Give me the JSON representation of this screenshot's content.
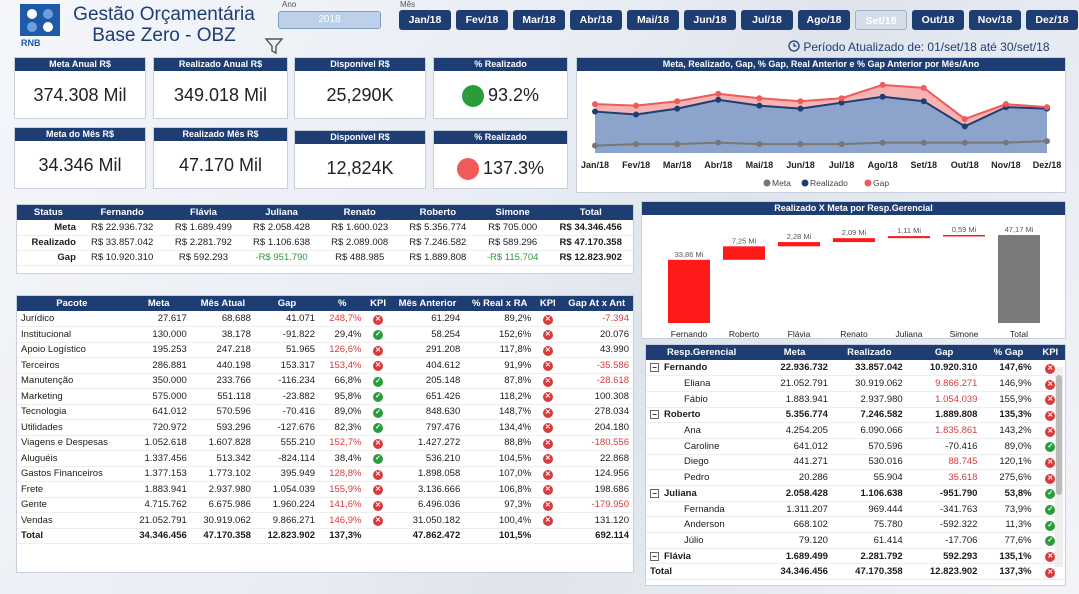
{
  "header": {
    "logo_text": "RNB",
    "title_line1": "Gestão Orçamentária",
    "title_line2": "Base Zero - OBZ",
    "ano_label": "Ano",
    "mes_label": "Mês",
    "year": "2018",
    "months": [
      "Jan/18",
      "Fev/18",
      "Mar/18",
      "Abr/18",
      "Mai/18",
      "Jun/18",
      "Jul/18",
      "Ago/18",
      "Set/18",
      "Out/18",
      "Nov/18",
      "Dez/18"
    ],
    "selected_month": "Set/18",
    "period": "Período Atualizado de: 01/set/18 até 30/set/18"
  },
  "cards": {
    "meta_anual": {
      "label": "Meta Anual R$",
      "value": "374.308 Mil"
    },
    "realizado_anual": {
      "label": "Realizado Anual R$",
      "value": "349.018 Mil"
    },
    "disponivel_anual": {
      "label": "Disponível R$",
      "value": "25,290K"
    },
    "pct_anual": {
      "label": "% Realizado",
      "value": "93.2%"
    },
    "meta_mes": {
      "label": "Meta do Mês R$",
      "value": "34.346 Mil"
    },
    "realizado_mes": {
      "label": "Realizado Mês R$",
      "value": "47.170 Mil"
    },
    "disponivel_mes": {
      "label": "Disponível R$",
      "value": "12,824K"
    },
    "pct_mes": {
      "label": "% Realizado",
      "value": "137.3%"
    }
  },
  "colors": {
    "navy": "#1e3d73",
    "red": "#d93b3b",
    "green": "#2a9d3a",
    "meta": "#777777",
    "realizado": "#1e3d73",
    "gap": "#f05a5a"
  },
  "chart_data": [
    {
      "type": "area",
      "title": "Meta, Realizado, Gap, % Gap, Real Anterior e % Gap Anterior por Mês/Ano",
      "categories": [
        "Jan/18",
        "Fev/18",
        "Mar/18",
        "Abr/18",
        "Mai/18",
        "Jun/18",
        "Jul/18",
        "Ago/18",
        "Set/18",
        "Out/18",
        "Nov/18",
        "Dez/18"
      ],
      "series": [
        {
          "name": "Meta",
          "values": [
            5,
            6,
            6,
            7,
            6,
            6,
            6,
            7,
            7,
            7,
            7,
            8
          ]
        },
        {
          "name": "Realizado",
          "values": [
            28,
            26,
            30,
            36,
            32,
            30,
            34,
            38,
            35,
            18,
            31,
            30
          ]
        },
        {
          "name": "Gap",
          "values": [
            33,
            32,
            35,
            40,
            37,
            35,
            37,
            46,
            44,
            23,
            33,
            31
          ]
        }
      ],
      "legend": [
        "Meta",
        "Realizado",
        "Gap"
      ],
      "ylim": [
        0,
        50
      ]
    },
    {
      "type": "bar",
      "title": "Realizado X Meta por Resp.Gerencial",
      "categories": [
        "Fernando",
        "Roberto",
        "Flávia",
        "Renato",
        "Juliana",
        "Simone",
        "Total"
      ],
      "values": [
        33.86,
        7.25,
        2.28,
        2.09,
        1.11,
        0.59,
        47.17
      ],
      "labels": [
        "33,86 Mi",
        "7,25 Mi",
        "2,28 Mi",
        "2,09 Mi",
        "1,11 Mi",
        "0,59 Mi",
        "47,17 Mi"
      ]
    }
  ],
  "status": {
    "headers": [
      "Status",
      "Fernando",
      "Flávia",
      "Juliana",
      "Renato",
      "Roberto",
      "Simone",
      "Total"
    ],
    "rows": [
      [
        "Meta",
        "R$ 22.936.732",
        "R$ 1.689.499",
        "R$ 2.058.428",
        "R$ 1.600.023",
        "R$ 5.356.774",
        "R$ 705.000",
        "R$ 34.346.456"
      ],
      [
        "Realizado",
        "R$ 33.857.042",
        "R$ 2.281.792",
        "R$ 1.106.638",
        "R$ 2.089.008",
        "R$ 7.246.582",
        "R$ 589.296",
        "R$ 47.170.358"
      ],
      [
        "Gap",
        "R$ 10.920.310",
        "R$ 592.293",
        "-R$ 951.790",
        "R$ 488.985",
        "R$ 1.889.808",
        "-R$ 115.704",
        "R$ 12.823.902"
      ]
    ]
  },
  "pacote": {
    "headers": [
      "Pacote",
      "Meta",
      "Mês Atual",
      "Gap",
      "%",
      "KPI",
      "Mês Anterior",
      "% Real x RA",
      "KPI",
      "Gap At x Ant"
    ],
    "rows": [
      [
        "Jurídico",
        "27.617",
        "68.688",
        "41.071",
        "248,7%",
        "x",
        "61.294",
        "89,2%",
        "x",
        "-7.394"
      ],
      [
        "Institucional",
        "130.000",
        "38.178",
        "-91.822",
        "29,4%",
        "ok",
        "58.254",
        "152,6%",
        "x",
        "20.076"
      ],
      [
        "Apoio Logístico",
        "195.253",
        "247.218",
        "51.965",
        "126,6%",
        "x",
        "291.208",
        "117,8%",
        "x",
        "43.990"
      ],
      [
        "Terceiros",
        "286.881",
        "440.198",
        "153.317",
        "153,4%",
        "x",
        "404.612",
        "91,9%",
        "x",
        "-35.586"
      ],
      [
        "Manutenção",
        "350.000",
        "233.766",
        "-116.234",
        "66,8%",
        "ok",
        "205.148",
        "87,8%",
        "x",
        "-28.618"
      ],
      [
        "Marketing",
        "575.000",
        "551.118",
        "-23.882",
        "95,8%",
        "ok",
        "651.426",
        "118,2%",
        "x",
        "100.308"
      ],
      [
        "Tecnologia",
        "641.012",
        "570.596",
        "-70.416",
        "89,0%",
        "ok",
        "848.630",
        "148,7%",
        "x",
        "278.034"
      ],
      [
        "Utilidades",
        "720.972",
        "593.296",
        "-127.676",
        "82,3%",
        "ok",
        "797.476",
        "134,4%",
        "x",
        "204.180"
      ],
      [
        "Viagens e Despesas",
        "1.052.618",
        "1.607.828",
        "555.210",
        "152,7%",
        "x",
        "1.427.272",
        "88,8%",
        "x",
        "-180.556"
      ],
      [
        "Aluguéis",
        "1.337.456",
        "513.342",
        "-824.114",
        "38,4%",
        "ok",
        "536.210",
        "104,5%",
        "x",
        "22.868"
      ],
      [
        "Gastos Financeiros",
        "1.377.153",
        "1.773.102",
        "395.949",
        "128,8%",
        "x",
        "1.898.058",
        "107,0%",
        "x",
        "124.956"
      ],
      [
        "Frete",
        "1.883.941",
        "2.937.980",
        "1.054.039",
        "155,9%",
        "x",
        "3.136.666",
        "106,8%",
        "x",
        "198.686"
      ],
      [
        "Gente",
        "4.715.762",
        "6.675.986",
        "1.960.224",
        "141,6%",
        "x",
        "6.496.036",
        "97,3%",
        "x",
        "-179.950"
      ],
      [
        "Vendas",
        "21.052.791",
        "30.919.062",
        "9.866.271",
        "146,9%",
        "x",
        "31.050.182",
        "100,4%",
        "x",
        "131.120"
      ]
    ],
    "total": [
      "Total",
      "34.346.456",
      "47.170.358",
      "12.823.902",
      "137,3%",
      "",
      "47.862.472",
      "101,5%",
      "",
      "692.114"
    ]
  },
  "resp": {
    "headers": [
      "Resp.Gerencial",
      "Meta",
      "Realizado",
      "Gap",
      "% Gap",
      "KPI"
    ],
    "rows": [
      {
        "g": true,
        "c": [
          "Fernando",
          "22.936.732",
          "33.857.042",
          "10.920.310",
          "147,6%",
          "x"
        ]
      },
      {
        "g": false,
        "c": [
          "Eliana",
          "21.052.791",
          "30.919.062",
          "9.866.271",
          "146,9%",
          "x"
        ]
      },
      {
        "g": false,
        "c": [
          "Fábio",
          "1.883.941",
          "2.937.980",
          "1.054.039",
          "155,9%",
          "x"
        ]
      },
      {
        "g": true,
        "c": [
          "Roberto",
          "5.356.774",
          "7.246.582",
          "1.889.808",
          "135,3%",
          "x"
        ]
      },
      {
        "g": false,
        "c": [
          "Ana",
          "4.254.205",
          "6.090.066",
          "1.835.861",
          "143,2%",
          "x"
        ]
      },
      {
        "g": false,
        "c": [
          "Caroline",
          "641.012",
          "570.596",
          "-70.416",
          "89,0%",
          "ok"
        ]
      },
      {
        "g": false,
        "c": [
          "Diego",
          "441.271",
          "530.016",
          "88.745",
          "120,1%",
          "x"
        ]
      },
      {
        "g": false,
        "c": [
          "Pedro",
          "20.286",
          "55.904",
          "35.618",
          "275,6%",
          "x"
        ]
      },
      {
        "g": true,
        "c": [
          "Juliana",
          "2.058.428",
          "1.106.638",
          "-951.790",
          "53,8%",
          "ok"
        ]
      },
      {
        "g": false,
        "c": [
          "Fernanda",
          "1.311.207",
          "969.444",
          "-341.763",
          "73,9%",
          "ok"
        ]
      },
      {
        "g": false,
        "c": [
          "Anderson",
          "668.102",
          "75.780",
          "-592.322",
          "11,3%",
          "ok"
        ]
      },
      {
        "g": false,
        "c": [
          "Júlio",
          "79.120",
          "61.414",
          "-17.706",
          "77,6%",
          "ok"
        ]
      },
      {
        "g": true,
        "c": [
          "Flávia",
          "1.689.499",
          "2.281.792",
          "592.293",
          "135,1%",
          "x"
        ]
      }
    ],
    "total": [
      "Total",
      "34.346.456",
      "47.170.358",
      "12.823.902",
      "137,3%",
      "x"
    ]
  }
}
